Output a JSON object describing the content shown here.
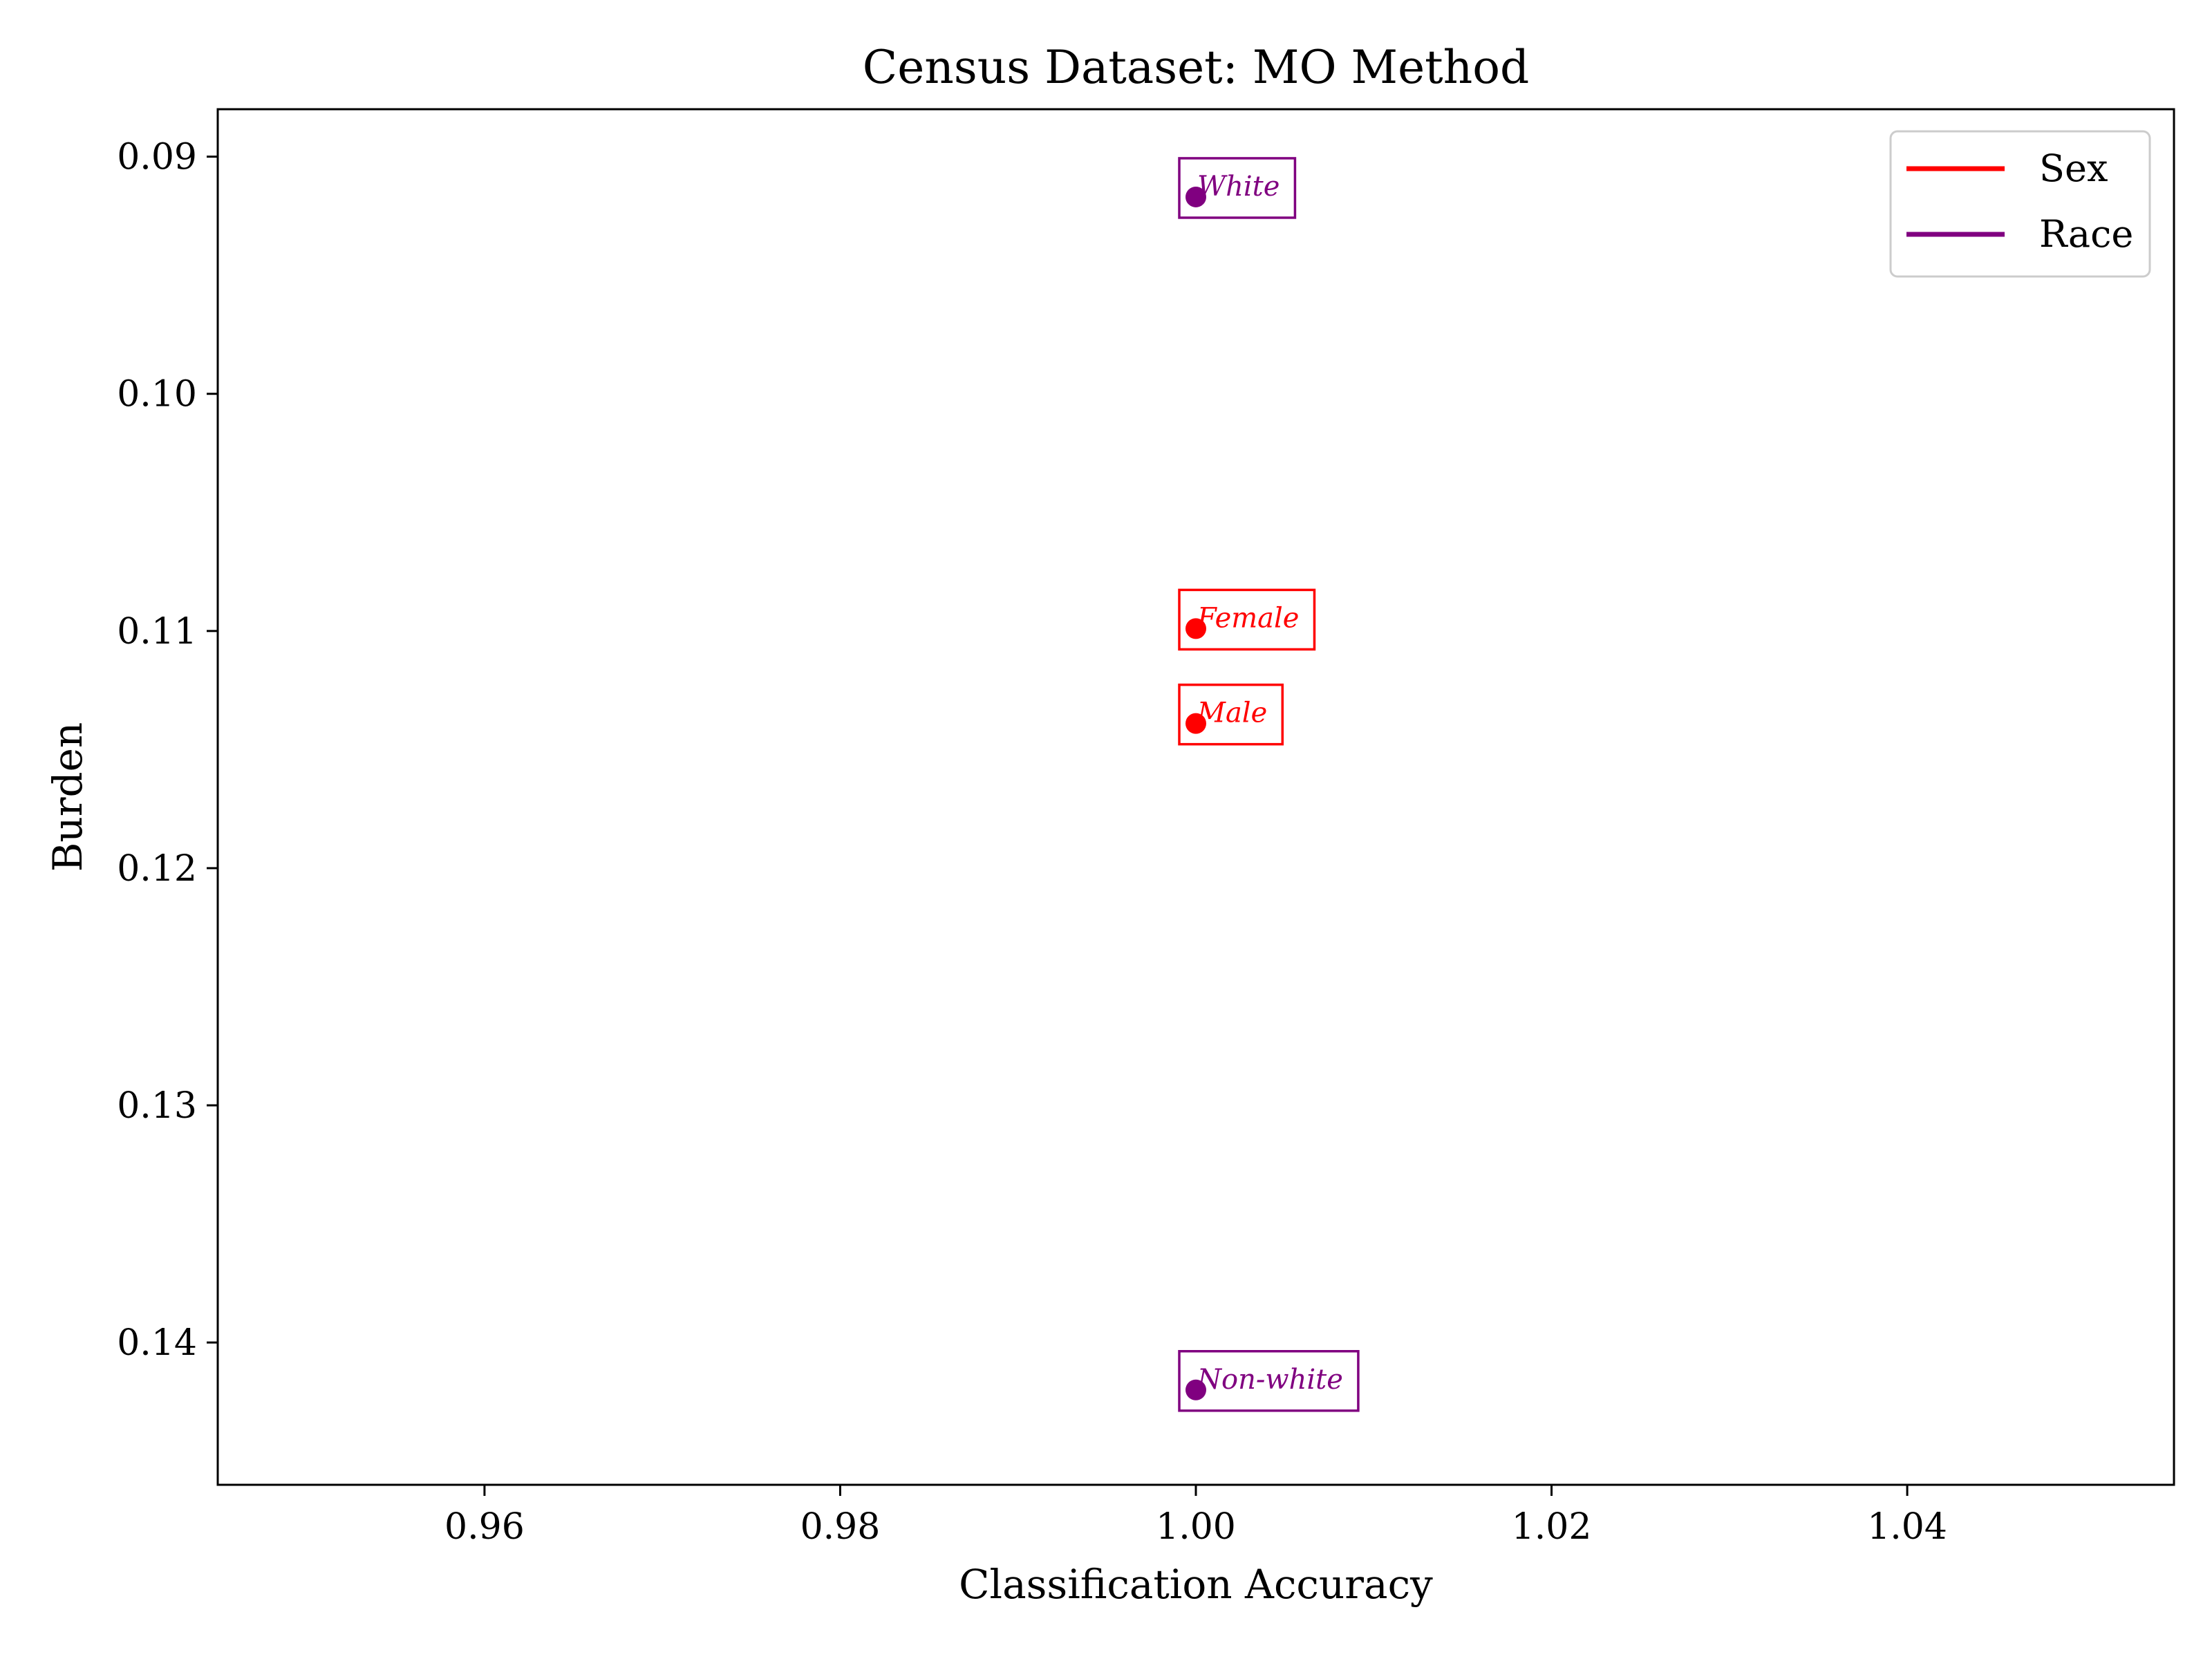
{
  "chart_data": {
    "type": "scatter",
    "title": "Census Dataset: MO Method",
    "xlabel": "Classification Accuracy",
    "ylabel": "Burden",
    "xlim": [
      0.945,
      1.055
    ],
    "ylim": [
      0.146,
      0.088
    ],
    "y_inverted": true,
    "xticks": [
      0.96,
      0.98,
      1.0,
      1.02,
      1.04
    ],
    "xtick_labels": [
      "0.96",
      "0.98",
      "1.00",
      "1.02",
      "1.04"
    ],
    "yticks": [
      0.09,
      0.1,
      0.11,
      0.12,
      0.13,
      0.14
    ],
    "ytick_labels": [
      "0.09",
      "0.10",
      "0.11",
      "0.12",
      "0.13",
      "0.14"
    ],
    "grid": false,
    "legend_position": "top-right",
    "series": [
      {
        "name": "Sex",
        "color": "#ff0000",
        "points": [
          {
            "label": "Female",
            "x": 1.0,
            "y": 0.1099
          },
          {
            "label": "Male",
            "x": 1.0,
            "y": 0.1139
          }
        ]
      },
      {
        "name": "Race",
        "color": "#800080",
        "points": [
          {
            "label": "White",
            "x": 1.0,
            "y": 0.0917
          },
          {
            "label": "Non-white",
            "x": 1.0,
            "y": 0.142
          }
        ]
      }
    ]
  }
}
